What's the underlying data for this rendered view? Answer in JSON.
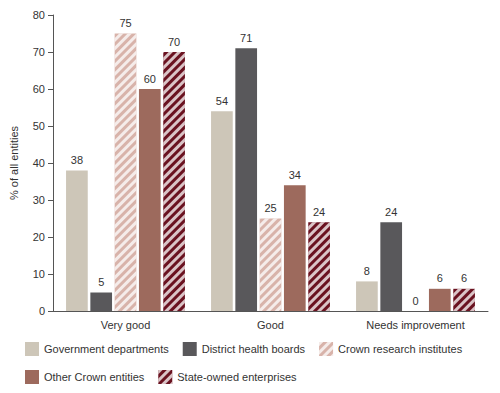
{
  "chart_data": {
    "type": "bar",
    "ylabel": "% of all entities",
    "categories": [
      "Very good",
      "Good",
      "Needs improvement"
    ],
    "series": [
      {
        "name": "Government departments",
        "color": "#cdc6b8",
        "values": [
          38,
          54,
          8
        ]
      },
      {
        "name": "District health boards",
        "color": "#59585b",
        "values": [
          5,
          71,
          24
        ]
      },
      {
        "name": "Crown research institutes",
        "color": "#d8b3aa",
        "values": [
          75,
          25,
          0
        ]
      },
      {
        "name": "Other Crown entities",
        "color": "#9d6a5d",
        "values": [
          60,
          34,
          6
        ]
      },
      {
        "name": "State-owned enterprises",
        "color": "#6a1220",
        "values": [
          70,
          24,
          6
        ]
      }
    ],
    "ylim": [
      0,
      80
    ],
    "yticks": [
      0,
      10,
      20,
      30,
      40,
      50,
      60,
      70,
      80
    ],
    "grid": false,
    "data_labels": true,
    "legend": "bottom"
  }
}
